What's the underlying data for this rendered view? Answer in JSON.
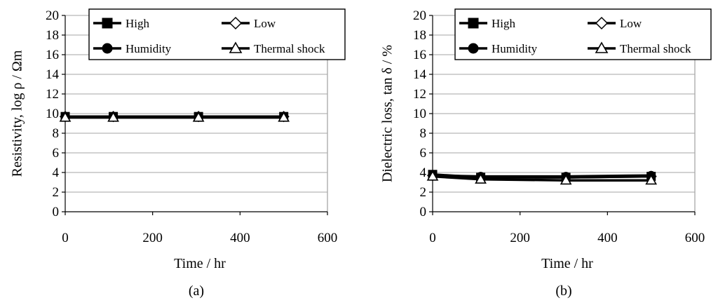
{
  "chart_data": [
    {
      "type": "line",
      "panel_label": "(a)",
      "xlabel": "Time / hr",
      "ylabel": "Resistivity, log ρ / Ωm",
      "xlim": [
        0,
        600
      ],
      "ylim": [
        0,
        20
      ],
      "xticks": [
        0,
        200,
        400,
        600
      ],
      "yticks": [
        0,
        2,
        4,
        6,
        8,
        10,
        12,
        14,
        16,
        18,
        20
      ],
      "grid": "horizontal",
      "legend_position": "top",
      "series": [
        {
          "name": "High",
          "marker": "square-filled",
          "x": [
            0,
            110,
            305,
            500
          ],
          "y": [
            9.7,
            9.7,
            9.7,
            9.7
          ]
        },
        {
          "name": "Low",
          "marker": "diamond-open",
          "x": [
            0,
            110,
            305,
            500
          ],
          "y": [
            9.7,
            9.7,
            9.7,
            9.7
          ]
        },
        {
          "name": "Humidity",
          "marker": "circle-filled",
          "x": [
            0,
            110,
            305,
            500
          ],
          "y": [
            9.7,
            9.7,
            9.7,
            9.7
          ]
        },
        {
          "name": "Thermal shock",
          "marker": "triangle-open",
          "x": [
            0,
            110,
            305,
            500
          ],
          "y": [
            9.6,
            9.6,
            9.6,
            9.6
          ]
        }
      ]
    },
    {
      "type": "line",
      "panel_label": "(b)",
      "xlabel": "Time / hr",
      "ylabel": "Dielectric loss, tan δ / %",
      "xlim": [
        0,
        600
      ],
      "ylim": [
        0,
        20
      ],
      "xticks": [
        0,
        200,
        400,
        600
      ],
      "yticks": [
        0,
        2,
        4,
        6,
        8,
        10,
        12,
        14,
        16,
        18,
        20
      ],
      "grid": "horizontal",
      "legend_position": "top",
      "series": [
        {
          "name": "High",
          "marker": "square-filled",
          "x": [
            0,
            110,
            305,
            500
          ],
          "y": [
            3.8,
            3.5,
            3.5,
            3.6
          ]
        },
        {
          "name": "Low",
          "marker": "diamond-open",
          "x": [
            0,
            110,
            305,
            500
          ],
          "y": [
            3.7,
            3.5,
            3.5,
            3.6
          ]
        },
        {
          "name": "Humidity",
          "marker": "circle-filled",
          "x": [
            0,
            110,
            305,
            500
          ],
          "y": [
            3.7,
            3.6,
            3.6,
            3.7
          ]
        },
        {
          "name": "Thermal shock",
          "marker": "triangle-open",
          "x": [
            0,
            110,
            305,
            500
          ],
          "y": [
            3.6,
            3.3,
            3.2,
            3.2
          ]
        }
      ]
    }
  ]
}
